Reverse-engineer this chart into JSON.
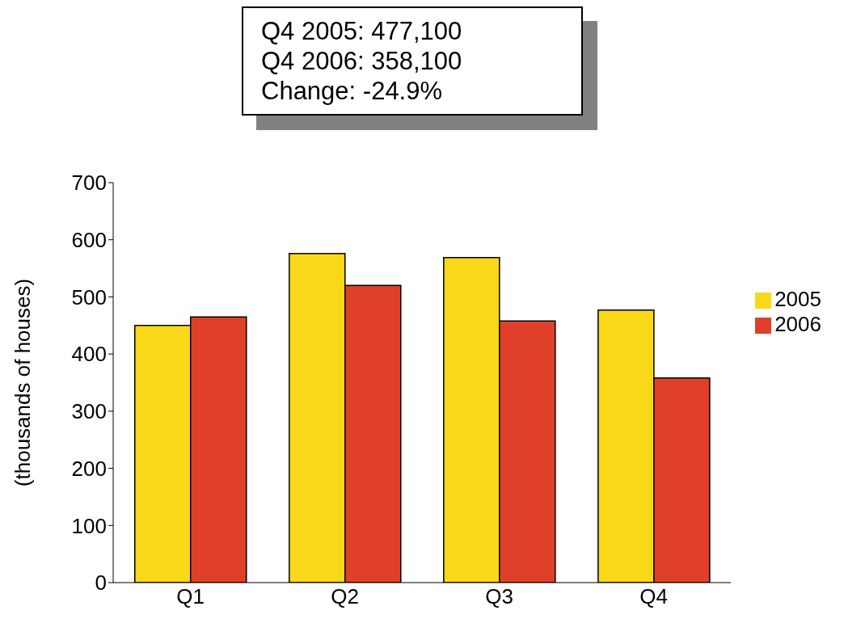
{
  "chart_data": {
    "type": "bar",
    "annotations": [
      "Q4 2005: 477,100",
      "Q4 2006: 358,100",
      "Change: -24.9%"
    ],
    "ylabel": "(thousands of houses)",
    "categories": [
      "Q1",
      "Q2",
      "Q3",
      "Q4"
    ],
    "series": [
      {
        "name": "2005",
        "color": "#f8d818",
        "values": [
          450,
          576,
          569,
          477
        ]
      },
      {
        "name": "2006",
        "color": "#e0402a",
        "values": [
          465,
          520,
          458,
          358
        ]
      }
    ],
    "ylim": [
      0,
      700
    ],
    "yticks": [
      0,
      100,
      200,
      300,
      400,
      500,
      600,
      700
    ],
    "grid": false,
    "legend": "right"
  }
}
